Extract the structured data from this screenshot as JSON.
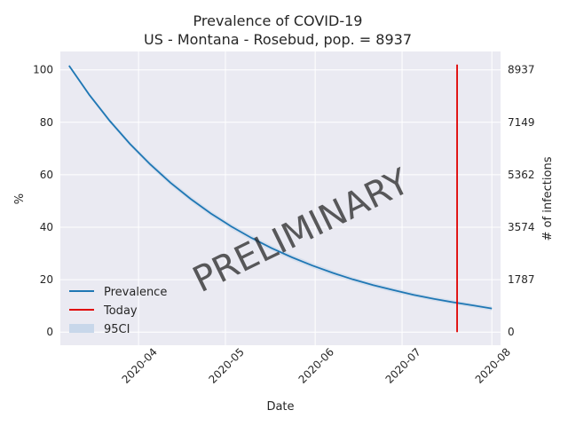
{
  "chart_data": {
    "type": "line",
    "title": "Prevalence of COVID-19",
    "subtitle": "US - Montana - Rosebud, pop. = 8937",
    "xlabel": "Date",
    "ylabel": "%",
    "ylabel_right": "# of infections",
    "watermark": "PRELIMINARY",
    "xlim": [
      "2020-03-05",
      "2020-08-04"
    ],
    "ylim": [
      -5,
      107
    ],
    "x_ticks": [
      "2020-04",
      "2020-05",
      "2020-06",
      "2020-07",
      "2020-08"
    ],
    "x_tick_dates": [
      "2020-04-01",
      "2020-05-01",
      "2020-06-01",
      "2020-07-01",
      "2020-08-01"
    ],
    "y_ticks": [
      "0",
      "20",
      "40",
      "60",
      "80",
      "100"
    ],
    "y_tick_values": [
      0,
      20,
      40,
      60,
      80,
      100
    ],
    "y2_ticks": [
      "0",
      "1787",
      "3574",
      "5362",
      "7149",
      "8937"
    ],
    "y2_tick_values": [
      0,
      20,
      40,
      60,
      80,
      100
    ],
    "series": [
      {
        "name": "Prevalence",
        "color": "#1f77b4",
        "x": [
          "2020-03-08",
          "2020-03-15",
          "2020-03-22",
          "2020-03-29",
          "2020-04-05",
          "2020-04-12",
          "2020-04-19",
          "2020-04-26",
          "2020-05-03",
          "2020-05-10",
          "2020-05-17",
          "2020-05-24",
          "2020-05-31",
          "2020-06-07",
          "2020-06-14",
          "2020-06-21",
          "2020-06-28",
          "2020-07-05",
          "2020-07-12",
          "2020-07-19",
          "2020-07-26",
          "2020-08-01"
        ],
        "y": [
          101.6,
          90.5,
          80.6,
          71.8,
          64.0,
          57.0,
          50.8,
          45.2,
          40.3,
          35.9,
          32.0,
          28.5,
          25.4,
          22.6,
          20.1,
          17.9,
          16.0,
          14.2,
          12.7,
          11.3,
          10.1,
          9.0
        ],
        "ci_low": [
          101.0,
          89.8,
          79.8,
          71.0,
          63.0,
          56.0,
          49.8,
          44.2,
          39.3,
          34.9,
          31.0,
          27.5,
          24.4,
          21.6,
          19.2,
          17.0,
          15.1,
          13.4,
          11.9,
          10.5,
          9.3,
          8.2
        ],
        "ci_high": [
          102.2,
          91.2,
          81.4,
          72.6,
          65.0,
          58.0,
          51.8,
          46.2,
          41.3,
          36.9,
          33.0,
          29.5,
          26.4,
          23.6,
          21.0,
          18.8,
          16.9,
          15.0,
          13.5,
          12.1,
          10.9,
          9.8
        ]
      },
      {
        "name": "Today",
        "color": "#e00000",
        "x": [
          "2020-07-20",
          "2020-07-20"
        ],
        "y": [
          0,
          102
        ]
      }
    ],
    "ci_label": "95CI",
    "ci_color": "#c8d7ea",
    "grid": true,
    "background": "#eaeaf2",
    "legend_position": "lower-left"
  }
}
